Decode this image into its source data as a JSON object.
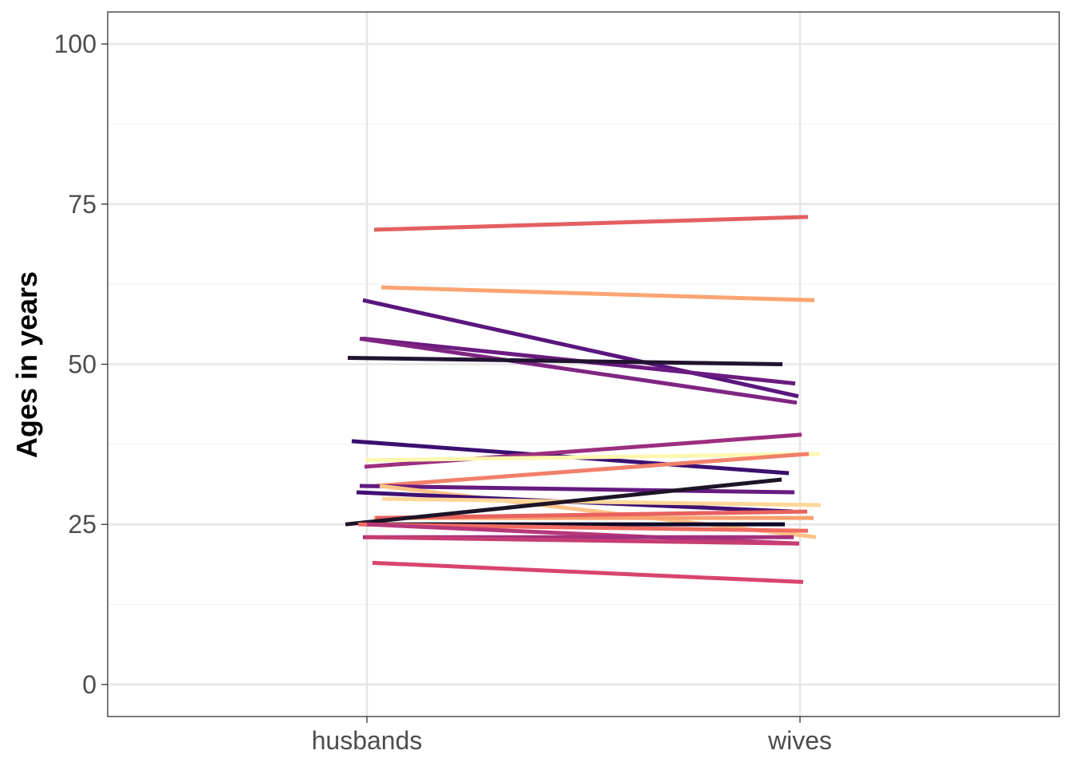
{
  "chart_data": {
    "type": "line",
    "title": "",
    "xlabel": "",
    "ylabel": "Ages in years",
    "categories": [
      "husbands",
      "wives"
    ],
    "ylim": [
      -5,
      105
    ],
    "yticks": [
      0,
      25,
      50,
      75,
      100
    ],
    "grid": true,
    "legend": "none",
    "colors": {
      "panel_border": "#333333",
      "grid_major": "#e6e6e6",
      "grid_minor": "#f2f2f2",
      "tick_text": "#4d4d4d"
    },
    "series": [
      {
        "values": [
          71,
          73
        ],
        "color": "#e35f62"
      },
      {
        "values": [
          62,
          60
        ],
        "color": "#fca472"
      },
      {
        "values": [
          60,
          45
        ],
        "color": "#5a167e"
      },
      {
        "values": [
          54,
          47
        ],
        "color": "#6b1b80"
      },
      {
        "values": [
          54,
          44
        ],
        "color": "#7f2582"
      },
      {
        "values": [
          51,
          50
        ],
        "color": "#221331"
      },
      {
        "values": [
          38,
          33
        ],
        "color": "#3b0f70"
      },
      {
        "values": [
          34,
          39
        ],
        "color": "#9c2e7f"
      },
      {
        "values": [
          35,
          36
        ],
        "color": "#fcf8b0"
      },
      {
        "values": [
          31,
          36
        ],
        "color": "#f1806a"
      },
      {
        "values": [
          31,
          30
        ],
        "color": "#641a80"
      },
      {
        "values": [
          31,
          23
        ],
        "color": "#fec287"
      },
      {
        "values": [
          30,
          27
        ],
        "color": "#400f73"
      },
      {
        "values": [
          29,
          28
        ],
        "color": "#fed799"
      },
      {
        "values": [
          26,
          26
        ],
        "color": "#f9a06e"
      },
      {
        "values": [
          26,
          27
        ],
        "color": "#e8625e"
      },
      {
        "values": [
          25,
          32
        ],
        "color": "#1d1426"
      },
      {
        "values": [
          25,
          25
        ],
        "color": "#0c0827"
      },
      {
        "values": [
          25,
          24
        ],
        "color": "#f06b61"
      },
      {
        "values": [
          25,
          22
        ],
        "color": "#b73779"
      },
      {
        "values": [
          23,
          23
        ],
        "color": "#a3307e"
      },
      {
        "values": [
          23,
          22
        ],
        "color": "#c73d73"
      },
      {
        "values": [
          19,
          16
        ],
        "color": "#d8456c"
      }
    ]
  }
}
